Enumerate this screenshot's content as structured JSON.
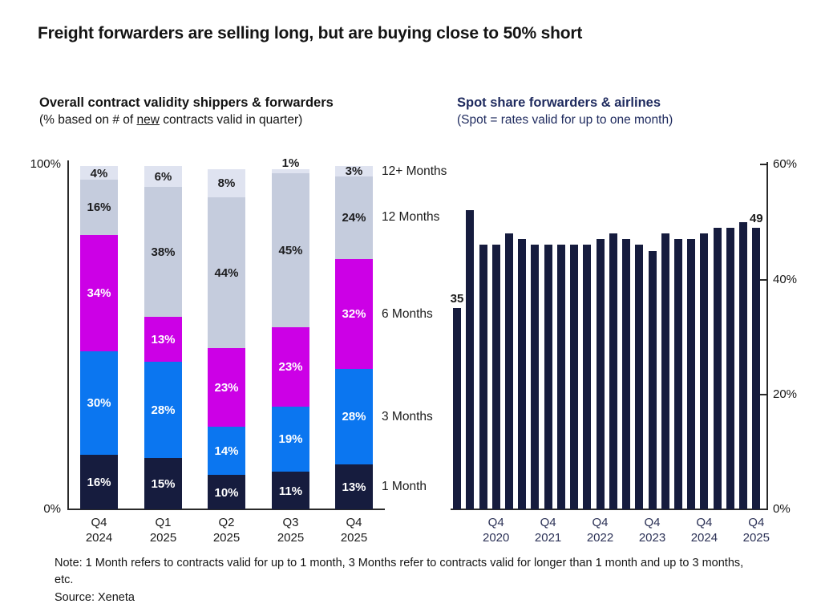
{
  "page": {
    "title": "Freight forwarders are selling long, but are buying close to 50% short",
    "note_line": "Note: 1 Month refers to contracts valid for up to 1 month, 3 Months refer to contracts valid for longer than 1 month and up to 3 months, etc.",
    "source": "Source: Xeneta"
  },
  "chart_data": [
    {
      "id": "contract-validity",
      "type": "bar",
      "stacked": true,
      "title": "Overall contract validity shippers & forwarders",
      "subtitle_prefix": "(% based on # of ",
      "subtitle_underlined": "new",
      "subtitle_suffix": " contracts valid in quarter)",
      "categories": [
        [
          "Q4",
          "2024"
        ],
        [
          "Q1",
          "2025"
        ],
        [
          "Q2",
          "2025"
        ],
        [
          "Q3",
          "2025"
        ],
        [
          "Q4",
          "2025"
        ]
      ],
      "series": [
        {
          "name": "1 Month",
          "color": "#161c3e",
          "label_color": "#ffffff",
          "values": [
            16,
            15,
            10,
            11,
            13
          ]
        },
        {
          "name": "3 Months",
          "color": "#0b76f0",
          "label_color": "#ffffff",
          "values": [
            30,
            28,
            14,
            19,
            28
          ]
        },
        {
          "name": "6 Months",
          "color": "#cc00e6",
          "label_color": "#ffffff",
          "values": [
            34,
            13,
            23,
            23,
            32
          ]
        },
        {
          "name": "12 Months",
          "color": "#c5ccdd",
          "label_color": "#1d1d1f",
          "values": [
            16,
            38,
            44,
            45,
            24
          ]
        },
        {
          "name": "12+ Months",
          "color": "#dfe3f0",
          "label_color": "#1d1d1f",
          "values": [
            4,
            6,
            8,
            1,
            3
          ]
        }
      ],
      "value_suffix": "%",
      "ylim": [
        0,
        100
      ],
      "yticks": [
        "100%",
        "0%"
      ],
      "grid": false,
      "legend_position": "right-of-last-bar"
    },
    {
      "id": "spot-share",
      "type": "bar",
      "title": "Spot share forwarders & airlines",
      "subtitle": "(Spot = rates valid for up to one month)",
      "x": [
        "Q1 2020",
        "Q2 2020",
        "Q3 2020",
        "Q4 2020",
        "Q1 2021",
        "Q2 2021",
        "Q3 2021",
        "Q4 2021",
        "Q1 2022",
        "Q2 2022",
        "Q3 2022",
        "Q4 2022",
        "Q1 2023",
        "Q2 2023",
        "Q3 2023",
        "Q4 2023",
        "Q1 2024",
        "Q2 2024",
        "Q3 2024",
        "Q4 2024",
        "Q1 2025",
        "Q2 2025",
        "Q3 2025",
        "Q4 2025"
      ],
      "values": [
        35,
        52,
        46,
        46,
        48,
        47,
        46,
        46,
        46,
        46,
        46,
        47,
        48,
        47,
        46,
        45,
        48,
        47,
        47,
        48,
        49,
        49,
        50,
        49
      ],
      "bar_color": "#161c3e",
      "ylim": [
        0,
        60
      ],
      "yticks": [
        "60%",
        "40%",
        "20%",
        "0%"
      ],
      "yaxis_side": "right",
      "grid": false,
      "xticks": [
        {
          "bar_index": 3,
          "label": [
            "Q4",
            "2020"
          ]
        },
        {
          "bar_index": 7,
          "label": [
            "Q4",
            "2021"
          ]
        },
        {
          "bar_index": 11,
          "label": [
            "Q4",
            "2022"
          ]
        },
        {
          "bar_index": 15,
          "label": [
            "Q4",
            "2023"
          ]
        },
        {
          "bar_index": 19,
          "label": [
            "Q4",
            "2024"
          ]
        },
        {
          "bar_index": 23,
          "label": [
            "Q4",
            "2025"
          ]
        }
      ],
      "annotations": [
        {
          "bar_index": 0,
          "text": "35"
        },
        {
          "bar_index": 23,
          "text": "49"
        }
      ]
    }
  ]
}
